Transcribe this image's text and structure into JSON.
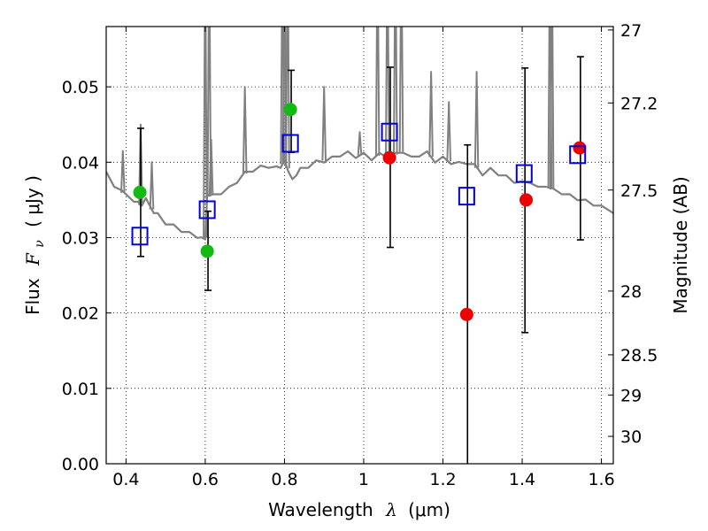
{
  "chart_data": {
    "type": "scatter",
    "xlabel": {
      "text": "Wavelength",
      "symbol": "λ",
      "unit": "(μm)"
    },
    "ylabel": {
      "text": "Flux",
      "symbol": "F",
      "subscript": "ν",
      "unit": "( μJy )"
    },
    "y2label": "Magnitude (AB)",
    "xlim": [
      0.35,
      1.63
    ],
    "ylim": [
      0,
      0.058
    ],
    "xticks": [
      0.4,
      0.6,
      0.8,
      1.0,
      1.2,
      1.4,
      1.6
    ],
    "xtick_labels": [
      "0.4",
      "0.6",
      "0.8",
      "1",
      "1.2",
      "1.4",
      "1.6"
    ],
    "yticks": [
      0,
      0.01,
      0.02,
      0.03,
      0.04,
      0.05
    ],
    "ytick_labels": [
      "0.00",
      "0.01",
      "0.02",
      "0.03",
      "0.04",
      "0.05"
    ],
    "y2ticks": [
      {
        "mag": 27,
        "label": "27"
      },
      {
        "mag": 27.2,
        "label": "27.2"
      },
      {
        "mag": 27.5,
        "label": "27.5"
      },
      {
        "mag": 28,
        "label": "28"
      },
      {
        "mag": 28.5,
        "label": "28.5"
      },
      {
        "mag": 29,
        "label": "29"
      },
      {
        "mag": 30,
        "label": "30"
      }
    ],
    "grid": true,
    "colors": {
      "model": "#808080",
      "green": "#11bb11",
      "red": "#ee0000",
      "square": "#0000dd",
      "errorbar": "#000000"
    },
    "model_spectrum": {
      "x": [
        0.35,
        0.37,
        0.39,
        0.41,
        0.42,
        0.43,
        0.44,
        0.45,
        0.46,
        0.47,
        0.48,
        0.5,
        0.52,
        0.54,
        0.56,
        0.58,
        0.59,
        0.6,
        0.605,
        0.61,
        0.62,
        0.64,
        0.66,
        0.68,
        0.7,
        0.72,
        0.74,
        0.76,
        0.78,
        0.79,
        0.8,
        0.81,
        0.82,
        0.83,
        0.84,
        0.86,
        0.88,
        0.9,
        0.92,
        0.94,
        0.96,
        0.98,
        1.0,
        1.02,
        1.04,
        1.06,
        1.08,
        1.1,
        1.12,
        1.14,
        1.16,
        1.18,
        1.2,
        1.22,
        1.24,
        1.26,
        1.28,
        1.3,
        1.32,
        1.34,
        1.36,
        1.38,
        1.4,
        1.42,
        1.44,
        1.46,
        1.48,
        1.5,
        1.52,
        1.54,
        1.56,
        1.58,
        1.6,
        1.63
      ],
      "y": [
        0.0385,
        0.037,
        0.036,
        0.0355,
        0.0345,
        0.035,
        0.034,
        0.0355,
        0.034,
        0.0335,
        0.033,
        0.032,
        0.0315,
        0.031,
        0.0305,
        0.0302,
        0.0298,
        0.03,
        0.0355,
        0.0358,
        0.0355,
        0.036,
        0.0365,
        0.0375,
        0.0385,
        0.039,
        0.0393,
        0.0395,
        0.0392,
        0.0395,
        0.04,
        0.039,
        0.0375,
        0.0385,
        0.039,
        0.0395,
        0.04,
        0.0402,
        0.0405,
        0.041,
        0.0412,
        0.0408,
        0.041,
        0.0405,
        0.041,
        0.0408,
        0.041,
        0.0415,
        0.0405,
        0.041,
        0.0412,
        0.0402,
        0.0405,
        0.04,
        0.0398,
        0.04,
        0.0395,
        0.0385,
        0.039,
        0.0385,
        0.038,
        0.0375,
        0.0372,
        0.0375,
        0.0365,
        0.037,
        0.0362,
        0.036,
        0.0355,
        0.0352,
        0.0348,
        0.0345,
        0.034,
        0.0335
      ]
    },
    "emission_lines": [
      {
        "x": 0.392,
        "peak": 0.0415
      },
      {
        "x": 0.437,
        "peak": 0.045
      },
      {
        "x": 0.465,
        "peak": 0.04
      },
      {
        "x": 0.6,
        "peak": 0.07
      },
      {
        "x": 0.61,
        "peak": 0.07
      },
      {
        "x": 0.615,
        "peak": 0.043
      },
      {
        "x": 0.7,
        "peak": 0.05
      },
      {
        "x": 0.795,
        "peak": 0.07
      },
      {
        "x": 0.8,
        "peak": 0.07
      },
      {
        "x": 0.808,
        "peak": 0.07
      },
      {
        "x": 0.9,
        "peak": 0.05
      },
      {
        "x": 0.99,
        "peak": 0.044
      },
      {
        "x": 1.035,
        "peak": 0.07
      },
      {
        "x": 1.06,
        "peak": 0.07
      },
      {
        "x": 1.08,
        "peak": 0.07
      },
      {
        "x": 1.095,
        "peak": 0.07
      },
      {
        "x": 1.17,
        "peak": 0.052
      },
      {
        "x": 1.215,
        "peak": 0.048
      },
      {
        "x": 1.285,
        "peak": 0.052
      },
      {
        "x": 1.47,
        "peak": 0.07
      },
      {
        "x": 1.475,
        "peak": 0.07
      }
    ],
    "series": [
      {
        "marker": "green-circle",
        "x": [
          0.435,
          0.605,
          0.815
        ],
        "y": [
          0.036,
          0.0282,
          0.047
        ]
      },
      {
        "marker": "red-circle",
        "x": [
          1.065,
          1.26,
          1.41,
          1.545
        ],
        "y": [
          0.0406,
          0.0198,
          0.035,
          0.0419
        ]
      },
      {
        "marker": "open-square",
        "x": [
          0.435,
          0.605,
          0.815,
          1.065,
          1.26,
          1.405,
          1.54
        ],
        "y": [
          0.0302,
          0.0337,
          0.0425,
          0.044,
          0.0355,
          0.0385,
          0.041
        ]
      }
    ],
    "errorbars": [
      {
        "x": 0.437,
        "low": 0.0275,
        "high": 0.0445
      },
      {
        "x": 0.607,
        "low": 0.023,
        "high": 0.0335
      },
      {
        "x": 0.817,
        "low": 0.0413,
        "high": 0.0522
      },
      {
        "x": 1.067,
        "low": 0.0287,
        "high": 0.0526
      },
      {
        "x": 1.262,
        "low": 0.0,
        "high": 0.0423
      },
      {
        "x": 1.407,
        "low": 0.0174,
        "high": 0.0525
      },
      {
        "x": 1.547,
        "low": 0.0297,
        "high": 0.054
      }
    ]
  }
}
